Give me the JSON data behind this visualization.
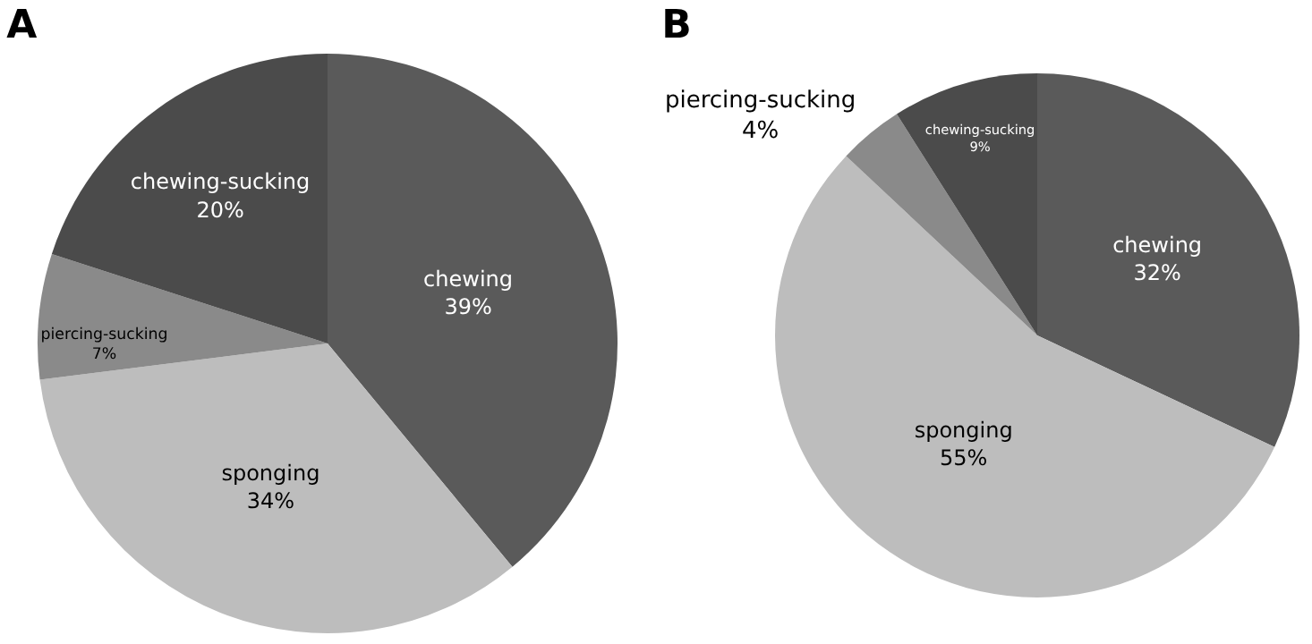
{
  "chart_data": [
    {
      "type": "pie",
      "title": "A",
      "categories": [
        "chewing",
        "sponging",
        "piercing-sucking",
        "chewing-sucking"
      ],
      "values": [
        39,
        34,
        7,
        20
      ],
      "value_labels": [
        "39%",
        "34%",
        "7%",
        "20%"
      ],
      "colors": [
        "#5a5a5a",
        "#bdbdbd",
        "#8a8a8a",
        "#4b4b4b"
      ],
      "legend": false
    },
    {
      "type": "pie",
      "title": "B",
      "categories": [
        "chewing",
        "sponging",
        "piercing-sucking",
        "chewing-sucking"
      ],
      "values": [
        32,
        55,
        4,
        9
      ],
      "value_labels": [
        "32%",
        "55%",
        "4%",
        "9%"
      ],
      "colors": [
        "#5a5a5a",
        "#bdbdbd",
        "#8a8a8a",
        "#4b4b4b"
      ],
      "legend": false
    }
  ]
}
